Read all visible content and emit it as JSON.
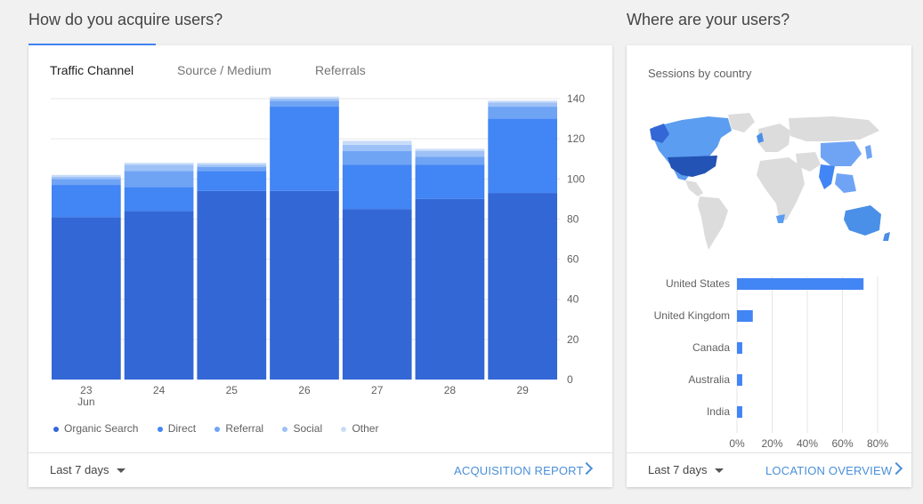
{
  "acquire": {
    "title": "How do you acquire users?",
    "tabs": [
      {
        "label": "Traffic Channel"
      },
      {
        "label": "Source / Medium"
      },
      {
        "label": "Referrals"
      }
    ],
    "footer": {
      "range": "Last 7 days",
      "link": "ACQUISITION REPORT"
    }
  },
  "where": {
    "title": "Where are your users?",
    "map_label": "Sessions by country",
    "footer": {
      "range": "Last 7 days",
      "link": "LOCATION OVERVIEW"
    }
  },
  "colors": {
    "organic": "#3367d6",
    "direct": "#4285f4",
    "referral": "#6fa4f5",
    "social": "#9dc1f6",
    "other": "#c8dcf9"
  },
  "chart_data": [
    {
      "type": "bar",
      "stacked": true,
      "categories": [
        "23",
        "24",
        "25",
        "26",
        "27",
        "28",
        "29"
      ],
      "category_sublabels": [
        "Jun",
        "",
        "",
        "",
        "",
        "",
        ""
      ],
      "series": [
        {
          "name": "Organic Search",
          "values": [
            81,
            84,
            94,
            94,
            85,
            90,
            93
          ]
        },
        {
          "name": "Direct",
          "values": [
            16,
            12,
            10,
            42,
            22,
            17,
            37
          ]
        },
        {
          "name": "Referral",
          "values": [
            3,
            8,
            2,
            3,
            7,
            4,
            6
          ]
        },
        {
          "name": "Social",
          "values": [
            1,
            3,
            1,
            1,
            3,
            3,
            2
          ]
        },
        {
          "name": "Other",
          "values": [
            1,
            1,
            1,
            1,
            2,
            1,
            1
          ]
        }
      ],
      "yticks": [
        0,
        20,
        40,
        60,
        80,
        100,
        120,
        140
      ],
      "ylim": [
        0,
        140
      ],
      "legend": "bottom",
      "grid": true
    },
    {
      "type": "bar",
      "orientation": "horizontal",
      "categories": [
        "United States",
        "United Kingdom",
        "Canada",
        "Australia",
        "India"
      ],
      "values": [
        72,
        9,
        3,
        3,
        3
      ],
      "unit": "%",
      "xticks": [
        "0%",
        "20%",
        "40%",
        "60%",
        "80%"
      ],
      "xlim": [
        0,
        80
      ],
      "grid": true
    }
  ]
}
